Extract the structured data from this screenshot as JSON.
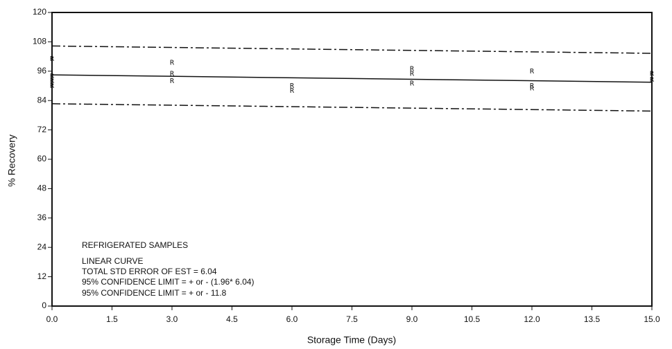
{
  "chart_data": {
    "type": "scatter",
    "x_label": "Storage Time (Days)",
    "y_label": "% Recovery",
    "xlim": [
      0,
      15
    ],
    "ylim": [
      0,
      120
    ],
    "xticks": [
      {
        "value": 0,
        "label": "0.0"
      },
      1.5,
      {
        "value": 3,
        "label": "3.0"
      },
      4.5,
      {
        "value": 6,
        "label": "6.0"
      },
      7.5,
      {
        "value": 9,
        "label": "9.0"
      },
      10.5,
      {
        "value": 12,
        "label": "12.0"
      },
      13.5,
      {
        "value": 15,
        "label": "15.0"
      }
    ],
    "yticks": [
      0,
      12,
      24,
      36,
      48,
      60,
      72,
      84,
      96,
      108,
      120
    ],
    "points": {
      "marker": "R",
      "x": [
        0,
        0,
        0,
        0,
        3,
        3,
        3,
        6,
        6,
        9,
        9,
        9,
        12,
        12,
        12,
        15,
        15
      ],
      "values": [
        101,
        94,
        92,
        90,
        99.5,
        95,
        92,
        90,
        88,
        97,
        95,
        91,
        96,
        90,
        89,
        95,
        92.5
      ]
    },
    "lines": [
      {
        "x": [
          0,
          15
        ],
        "values": [
          94.5,
          91.5
        ],
        "style": "solid"
      },
      {
        "x": [
          0,
          15
        ],
        "values": [
          106.3,
          103.3
        ],
        "style": "dashdot"
      },
      {
        "x": [
          0,
          15
        ],
        "values": [
          82.7,
          79.7
        ],
        "style": "dashdot"
      }
    ],
    "annotations": [
      "REFRIGERATED SAMPLES",
      "LINEAR CURVE",
      "TOTAL STD ERROR OF EST =  6.04",
      "95% CONFIDENCE LIMIT = + or - (1.96* 6.04)",
      "95% CONFIDENCE LIMIT = + or -  11.8"
    ],
    "color": "#111111"
  }
}
